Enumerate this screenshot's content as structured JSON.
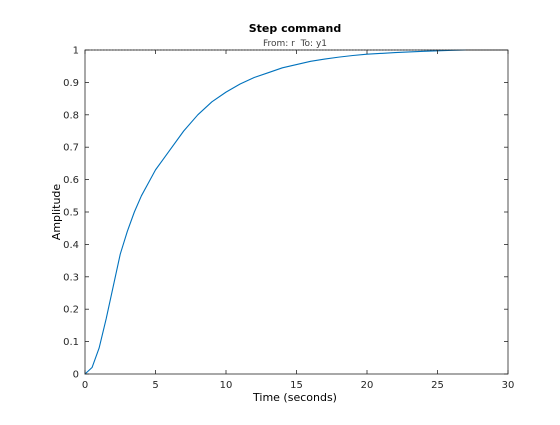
{
  "chart_data": {
    "type": "line",
    "title": "Step command",
    "subtitle": "From: r  To: y1",
    "xlabel": "Time (seconds)",
    "ylabel": "Amplitude",
    "xlim": [
      0,
      30
    ],
    "ylim": [
      0,
      1
    ],
    "xticks": [
      "0",
      "5",
      "10",
      "15",
      "20",
      "25",
      "30"
    ],
    "yticks": [
      "0",
      "0.1",
      "0.2",
      "0.3",
      "0.4",
      "0.5",
      "0.6",
      "0.7",
      "0.8",
      "0.9",
      "1"
    ],
    "grid": false,
    "reference_line": 1,
    "series": [
      {
        "color": "#0072bd",
        "x": [
          0,
          0.5,
          1,
          1.5,
          2,
          2.5,
          3,
          3.5,
          4,
          4.5,
          5,
          5.5,
          6,
          7,
          8,
          9,
          10,
          11,
          12,
          13,
          14,
          15,
          16,
          17,
          18,
          19,
          20,
          22,
          24,
          26,
          27
        ],
        "y": [
          0,
          0.02,
          0.08,
          0.17,
          0.27,
          0.37,
          0.44,
          0.5,
          0.55,
          0.59,
          0.63,
          0.66,
          0.69,
          0.75,
          0.8,
          0.84,
          0.87,
          0.895,
          0.915,
          0.93,
          0.945,
          0.955,
          0.965,
          0.972,
          0.978,
          0.983,
          0.987,
          0.992,
          0.996,
          0.999,
          1.0
        ]
      }
    ]
  }
}
